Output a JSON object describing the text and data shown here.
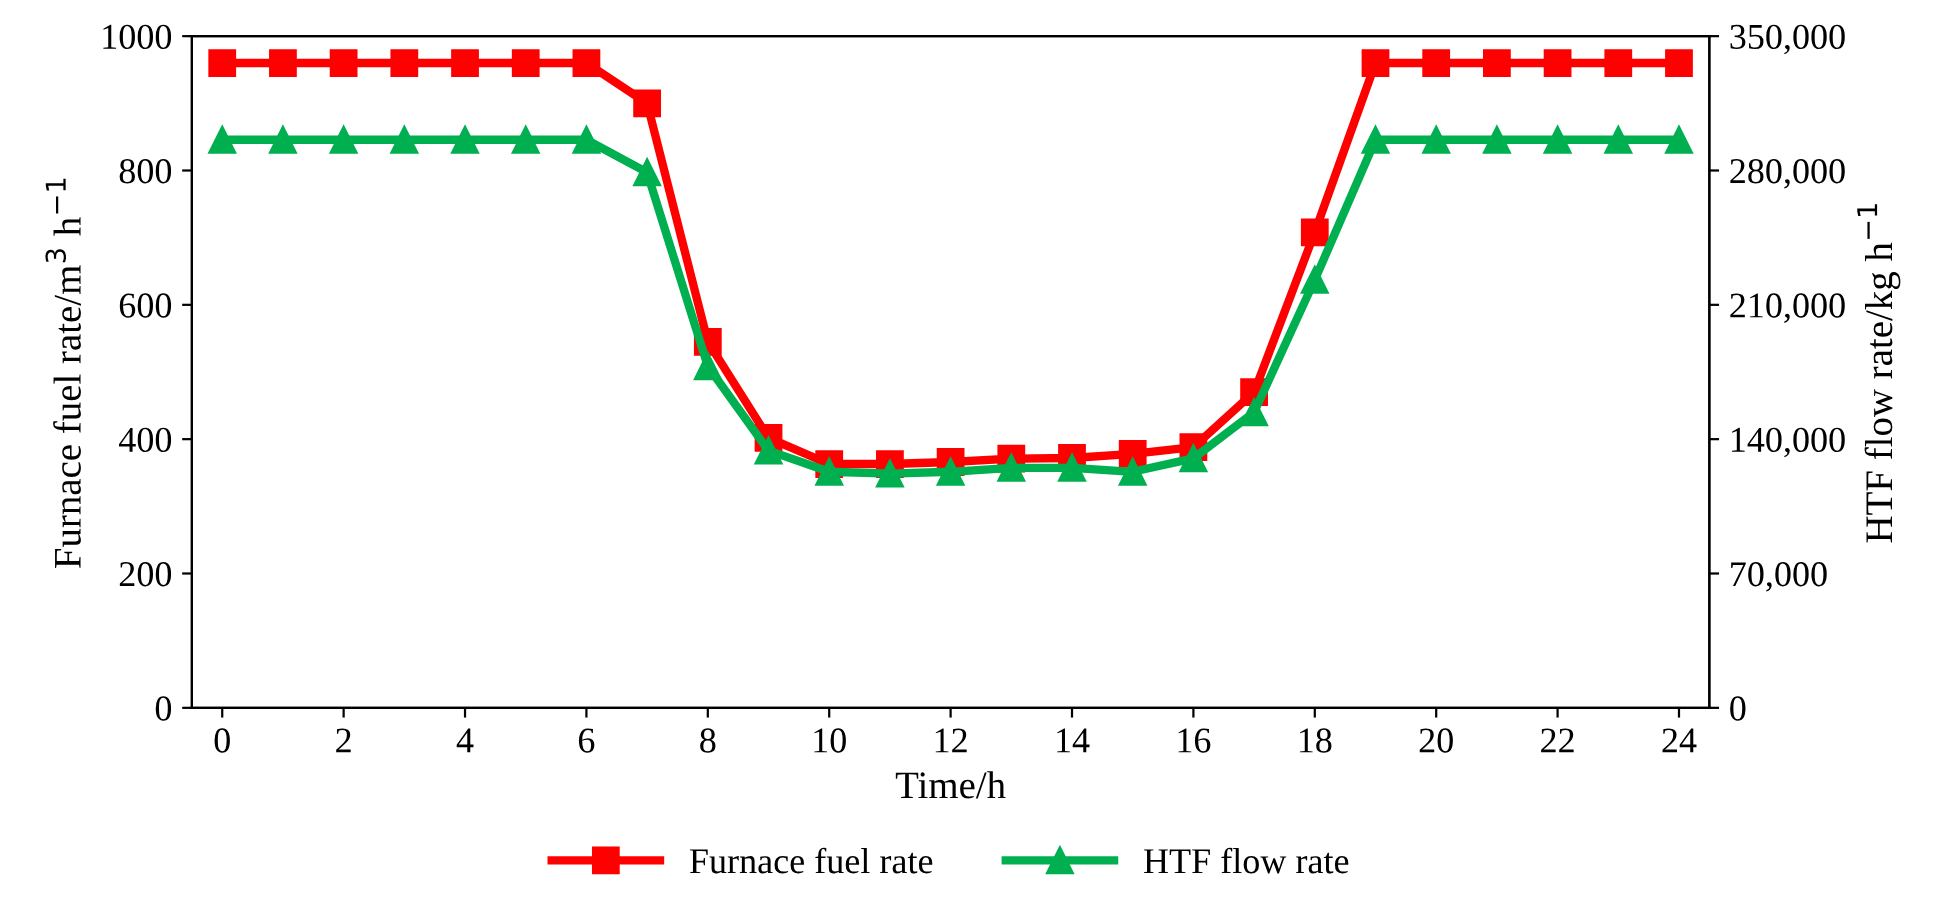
{
  "chart_data": {
    "type": "line",
    "xlabel": "Time/h",
    "ylabel": "Furnace fuel rate/m$^{3}$ h$^{−1}$",
    "y2label": "HTF flow rate/kg h$^{−1}$",
    "x": [
      0,
      1,
      2,
      3,
      4,
      5,
      6,
      7,
      8,
      9,
      10,
      11,
      12,
      13,
      14,
      15,
      16,
      17,
      18,
      19,
      20,
      21,
      22,
      23,
      24
    ],
    "series": [
      {
        "name": "Furnace fuel rate",
        "color": "#ff0000",
        "marker": "square",
        "values": [
          960,
          960,
          960,
          960,
          960,
          960,
          960,
          900,
          545,
          402,
          363,
          363,
          366,
          371,
          372,
          378,
          388,
          470,
          708,
          960,
          960,
          960,
          960,
          960,
          960
        ]
      },
      {
        "name": "HTF flow rate",
        "color": "#00b050",
        "marker": "triangle",
        "axis": "y2",
        "values": [
          296000,
          296000,
          296000,
          296000,
          296000,
          296000,
          296000,
          279000,
          178000,
          134000,
          123000,
          122000,
          123000,
          125000,
          125000,
          123000,
          130000,
          154000,
          223000,
          296000,
          296000,
          296000,
          296000,
          296000,
          296000
        ]
      }
    ],
    "xlim": [
      -0.5,
      24.5
    ],
    "xticks": [
      0,
      2,
      4,
      6,
      8,
      10,
      12,
      14,
      16,
      18,
      20,
      22,
      24
    ],
    "ylim": [
      0,
      1000
    ],
    "yticks": [
      0,
      200,
      400,
      600,
      800,
      1000
    ],
    "y2lim": [
      0,
      350000
    ],
    "y2ticks": [
      {
        "value": 0,
        "label": "0"
      },
      {
        "value": 70000,
        "label": "70,000"
      },
      {
        "value": 140000,
        "label": "140,000"
      },
      {
        "value": 210000,
        "label": "210,000"
      },
      {
        "value": 280000,
        "label": "280,000"
      },
      {
        "value": 350000,
        "label": "350,000"
      }
    ],
    "legend": "bottom",
    "grid": false,
    "line_style": "solid"
  }
}
